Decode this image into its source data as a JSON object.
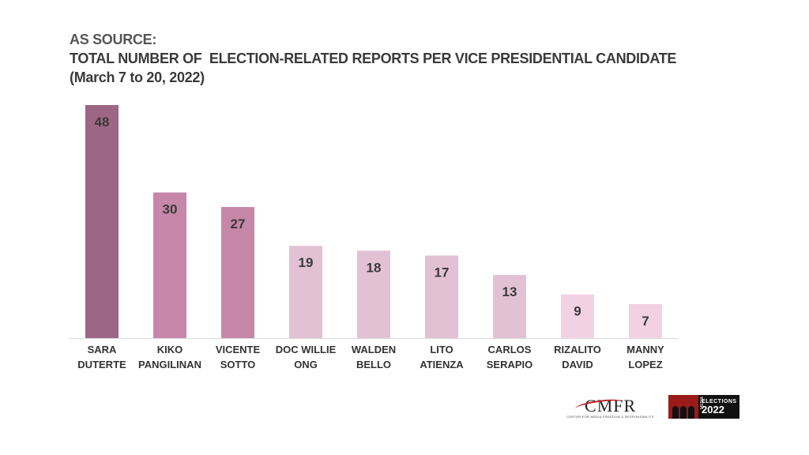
{
  "header": {
    "line1": "AS SOURCE:",
    "line2": "TOTAL NUMBER OF  ELECTION-RELATED REPORTS PER VICE PRESIDENTIAL CANDIDATE",
    "line3": "(March 7 to 20, 2022)"
  },
  "chart_data": {
    "type": "bar",
    "categories": [
      [
        "SARA",
        "DUTERTE"
      ],
      [
        "KIKO",
        "PANGILINAN"
      ],
      [
        "VICENTE",
        "SOTTO"
      ],
      [
        "DOC WILLIE",
        "ONG"
      ],
      [
        "WALDEN",
        "BELLO"
      ],
      [
        "LITO",
        "ATIENZA"
      ],
      [
        "CARLOS",
        "SERAPIO"
      ],
      [
        "RIZALITO",
        "DAVID"
      ],
      [
        "MANNY",
        "LOPEZ"
      ]
    ],
    "values": [
      48,
      30,
      27,
      19,
      18,
      17,
      13,
      9,
      7
    ],
    "colors": [
      "#9e6685",
      "#c687a9",
      "#c687a9",
      "#e2c1d5",
      "#e2c1d5",
      "#e2c1d5",
      "#e2c1d5",
      "#f2d1e3",
      "#f2d1e3"
    ],
    "ylim": [
      0,
      48
    ],
    "grid": false,
    "legend": "none",
    "data_labels": true
  },
  "logos": {
    "cmfr_mark": "CMFR",
    "cmfr_sub": "CENTER FOR MEDIA FREEDOM & RESPONSIBILITY",
    "me_t1": "ELECTIONS",
    "me_t2": "2022",
    "me_side": "MEDIA"
  }
}
